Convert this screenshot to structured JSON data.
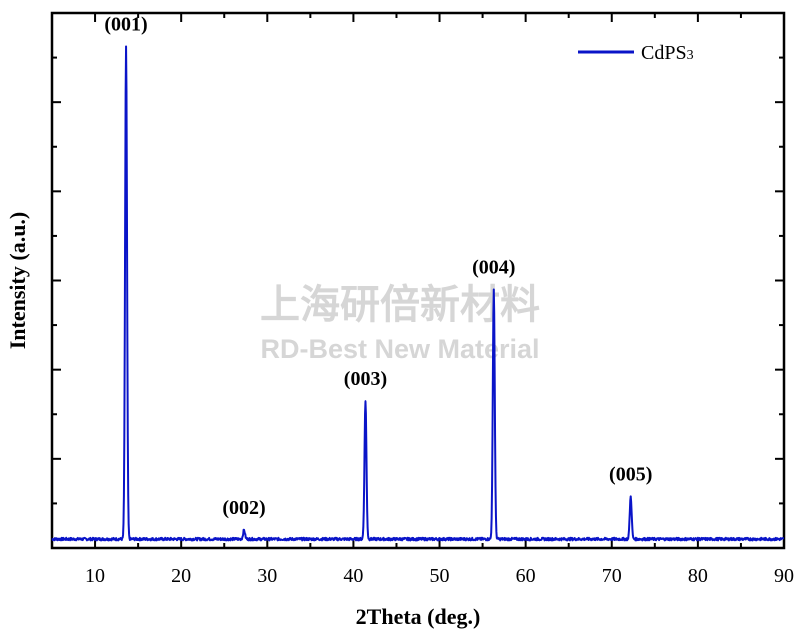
{
  "chart_data": {
    "type": "line",
    "xlabel": "2Theta (deg.)",
    "ylabel": "Intensity (a.u.)",
    "xlim": [
      5,
      90
    ],
    "ylim": [
      0,
      1.2
    ],
    "x_ticks": [
      10,
      20,
      30,
      40,
      50,
      60,
      70,
      80,
      90
    ],
    "y_tick_labels_shown": false,
    "legend_position": "top-right",
    "series": [
      {
        "name": "CdPS3",
        "color": "#0a14c8",
        "baseline": 0.02,
        "peaks": [
          {
            "x": 13.6,
            "y": 1.125
          },
          {
            "x": 27.3,
            "y": 0.04
          },
          {
            "x": 41.4,
            "y": 0.33
          },
          {
            "x": 56.3,
            "y": 0.58
          },
          {
            "x": 72.2,
            "y": 0.115
          }
        ]
      }
    ],
    "annotations": [
      {
        "text": "(001)",
        "x": 13.6,
        "y": 1.125
      },
      {
        "text": "(002)",
        "x": 27.3,
        "y": 0.04
      },
      {
        "text": "(003)",
        "x": 41.4,
        "y": 0.33
      },
      {
        "text": "(004)",
        "x": 56.3,
        "y": 0.58
      },
      {
        "text": "(005)",
        "x": 72.2,
        "y": 0.115
      }
    ]
  },
  "legend": {
    "label_main": "CdPS",
    "label_sub": "3"
  },
  "watermark": {
    "line1": "上海研倍新材料",
    "line2": "RD-Best New Material"
  }
}
